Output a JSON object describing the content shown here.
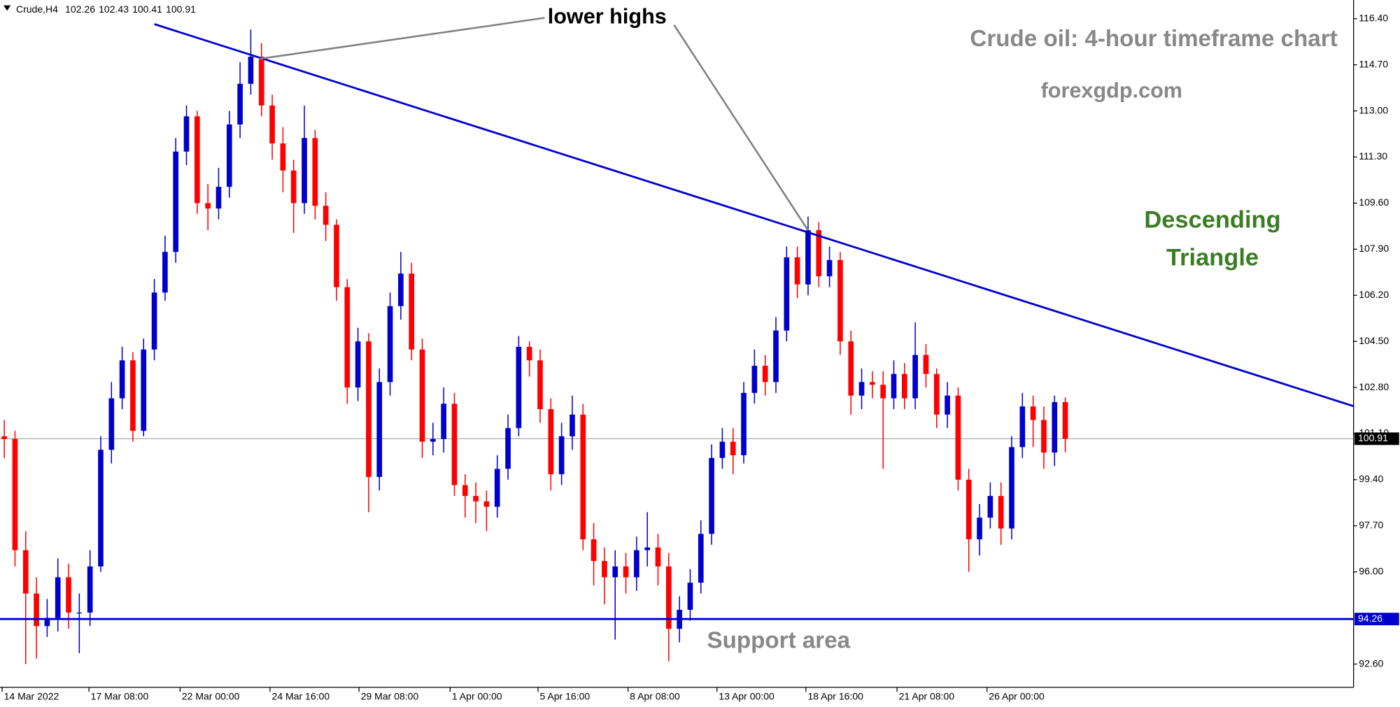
{
  "chart_data": {
    "type": "candlestick",
    "symbol": "Crude,H4",
    "title": "Crude oil: 4-hour timeframe chart",
    "subtitle": "forexgdp.com",
    "annotation": "lower highs",
    "pattern_label": [
      "Descending",
      "Triangle"
    ],
    "support_label": "Support area",
    "up_color": "#0000cd",
    "down_color": "#ff0000",
    "x": [
      0,
      1,
      2,
      3,
      4,
      5,
      6,
      7,
      8,
      9,
      10,
      11,
      12,
      13,
      14,
      15,
      16,
      17,
      18,
      19,
      20,
      21,
      22,
      23,
      24,
      25,
      26,
      27,
      28,
      29,
      30,
      31,
      32,
      33,
      34,
      35,
      36,
      37,
      38,
      39,
      40,
      41,
      42,
      43,
      44,
      45,
      46,
      47,
      48,
      49,
      50,
      51,
      52,
      53,
      54,
      55,
      56,
      57,
      58,
      59,
      60,
      61,
      62,
      63,
      64,
      65,
      66,
      67,
      68,
      69,
      70,
      71,
      72,
      73,
      74,
      75,
      76,
      77,
      78,
      79,
      80,
      81,
      82,
      83,
      84,
      85,
      86,
      87,
      88,
      89,
      90,
      91,
      92,
      93,
      94,
      95,
      96,
      97,
      98,
      99
    ],
    "open": [
      101.0,
      100.9,
      96.8,
      95.2,
      94.0,
      94.3,
      95.8,
      94.5,
      94.5,
      96.2,
      100.5,
      102.4,
      103.8,
      101.2,
      104.2,
      106.3,
      107.8,
      111.5,
      112.8,
      109.6,
      109.4,
      110.2,
      112.5,
      114.0,
      115.0,
      113.2,
      111.8,
      110.8,
      109.6,
      112.0,
      109.5,
      108.8,
      106.5,
      102.8,
      104.5,
      99.5,
      103.0,
      105.8,
      107.0,
      104.2,
      100.8,
      100.9,
      102.2,
      99.2,
      98.8,
      98.6,
      98.4,
      99.8,
      101.3,
      104.3,
      103.8,
      102.0,
      99.6,
      101.0,
      101.8,
      97.2,
      96.4,
      95.8,
      96.2,
      95.8,
      96.8,
      96.9,
      96.2,
      93.9,
      94.6,
      95.6,
      97.4,
      100.2,
      100.8,
      100.3,
      102.6,
      103.6,
      103.0,
      104.9,
      107.6,
      106.6,
      108.6,
      106.9,
      107.5,
      104.5,
      102.5,
      103.0,
      102.9,
      102.4,
      103.3,
      102.4,
      104.0,
      103.3,
      101.8,
      102.5,
      99.4,
      97.2,
      98.0,
      98.8,
      97.6,
      100.6,
      102.1,
      101.6,
      100.4,
      102.26
    ],
    "high": [
      101.6,
      101.2,
      97.5,
      95.8,
      95.0,
      96.5,
      96.3,
      95.2,
      96.8,
      101.0,
      103.0,
      104.3,
      104.1,
      104.6,
      106.8,
      108.4,
      112.0,
      113.2,
      113.0,
      110.3,
      110.9,
      113.0,
      114.8,
      116.0,
      115.5,
      113.6,
      112.4,
      111.2,
      113.2,
      112.3,
      110.0,
      109.0,
      106.8,
      105.0,
      104.8,
      103.5,
      106.3,
      107.8,
      107.4,
      104.6,
      101.5,
      102.8,
      102.6,
      99.6,
      99.3,
      99.0,
      100.3,
      101.8,
      104.7,
      104.5,
      104.2,
      102.4,
      101.5,
      102.5,
      102.2,
      97.8,
      96.9,
      96.8,
      96.7,
      97.3,
      98.2,
      97.4,
      96.7,
      95.1,
      96.1,
      97.9,
      100.7,
      101.3,
      101.3,
      103.0,
      104.2,
      104.0,
      105.4,
      108.0,
      108.0,
      109.1,
      108.9,
      108.0,
      107.8,
      104.9,
      103.5,
      103.4,
      103.4,
      103.8,
      103.7,
      105.2,
      104.4,
      103.5,
      103.0,
      102.8,
      99.8,
      98.5,
      99.3,
      99.3,
      101.0,
      102.6,
      102.5,
      102.1,
      102.5,
      102.43
    ],
    "low": [
      100.2,
      96.2,
      92.6,
      92.8,
      93.6,
      93.8,
      93.9,
      93.0,
      94.0,
      96.0,
      100.0,
      102.0,
      100.8,
      101.0,
      103.8,
      106.0,
      107.4,
      111.0,
      109.2,
      108.6,
      109.0,
      109.8,
      112.0,
      113.6,
      112.8,
      111.2,
      110.0,
      108.5,
      109.2,
      109.0,
      108.2,
      106.0,
      102.2,
      102.3,
      98.2,
      99.0,
      102.5,
      105.3,
      103.8,
      100.2,
      100.3,
      100.4,
      98.8,
      98.0,
      97.8,
      97.5,
      98.0,
      99.4,
      101.0,
      103.2,
      101.5,
      99.0,
      99.2,
      100.5,
      96.8,
      95.5,
      94.8,
      93.5,
      95.2,
      95.3,
      96.2,
      95.5,
      92.7,
      93.4,
      94.2,
      95.2,
      97.0,
      99.8,
      99.6,
      100.0,
      102.2,
      102.5,
      102.6,
      104.5,
      106.1,
      106.2,
      106.5,
      106.5,
      104.0,
      101.8,
      102.0,
      102.4,
      99.8,
      102.0,
      102.0,
      102.0,
      102.8,
      101.3,
      101.3,
      99.0,
      96.0,
      96.6,
      97.6,
      97.0,
      97.2,
      100.2,
      100.6,
      99.8,
      99.9,
      100.41
    ],
    "close": [
      100.9,
      96.8,
      95.2,
      94.0,
      94.3,
      95.8,
      94.5,
      94.5,
      96.2,
      100.5,
      102.4,
      103.8,
      101.2,
      104.2,
      106.3,
      107.8,
      111.5,
      112.8,
      109.6,
      109.4,
      110.2,
      112.5,
      114.0,
      115.0,
      113.2,
      111.8,
      110.8,
      109.6,
      112.0,
      109.5,
      108.8,
      106.5,
      102.8,
      104.5,
      99.5,
      103.0,
      105.8,
      107.0,
      104.2,
      100.8,
      100.9,
      102.2,
      99.2,
      98.8,
      98.6,
      98.4,
      99.8,
      101.3,
      104.3,
      103.8,
      102.0,
      99.6,
      101.0,
      101.8,
      97.2,
      96.4,
      95.8,
      96.2,
      95.8,
      96.8,
      96.9,
      96.2,
      93.9,
      94.6,
      95.6,
      97.4,
      100.2,
      100.8,
      100.3,
      102.6,
      103.6,
      103.0,
      104.9,
      107.6,
      106.6,
      108.6,
      106.9,
      107.5,
      104.5,
      102.5,
      103.0,
      102.9,
      102.4,
      103.3,
      102.4,
      104.0,
      103.3,
      101.8,
      102.5,
      99.4,
      97.2,
      98.0,
      98.8,
      97.6,
      100.6,
      102.1,
      101.6,
      100.4,
      102.26,
      100.91
    ],
    "xlim": [
      -0.4,
      125.9
    ],
    "xticks": [
      {
        "value": -0.2,
        "label": "14 Mar 2022"
      },
      {
        "value": 7.9,
        "label": "17 Mar 08:00"
      },
      {
        "value": 16.4,
        "label": "22 Mar 00:00"
      },
      {
        "value": 24.8,
        "label": "24 Mar 16:00"
      },
      {
        "value": 33.1,
        "label": "29 Mar 08:00"
      },
      {
        "value": 41.6,
        "label": "1 Apr 00:00"
      },
      {
        "value": 49.8,
        "label": "5 Apr 16:00"
      },
      {
        "value": 58.2,
        "label": "8 Apr 08:00"
      },
      {
        "value": 66.5,
        "label": "13 Apr 00:00"
      },
      {
        "value": 74.8,
        "label": "18 Apr 16:00"
      },
      {
        "value": 83.3,
        "label": "21 Apr 08:00"
      },
      {
        "value": 91.7,
        "label": "26 Apr 00:00"
      }
    ],
    "ylim": [
      91.74,
      117.09
    ],
    "yticks": [
      {
        "value": 116.4,
        "label": "116.40"
      },
      {
        "value": 114.7,
        "label": "114.70"
      },
      {
        "value": 113,
        "label": "113.00"
      },
      {
        "value": 111.3,
        "label": "111.30"
      },
      {
        "value": 109.6,
        "label": "109.60"
      },
      {
        "value": 107.9,
        "label": "107.90"
      },
      {
        "value": 106.2,
        "label": "106.20"
      },
      {
        "value": 104.5,
        "label": "104.50"
      },
      {
        "value": 102.8,
        "label": "102.80"
      },
      {
        "value": 101.1,
        "label": "101.10"
      },
      {
        "value": 99.4,
        "label": "99.40"
      },
      {
        "value": 97.7,
        "label": "97.70"
      },
      {
        "value": 96,
        "label": "96.00"
      },
      {
        "value": 92.6,
        "label": "92.60"
      }
    ],
    "trendline": {
      "x": [
        14,
        125.9
      ],
      "y": [
        116.2,
        102.11
      ],
      "color": "#0000cd"
    },
    "support": {
      "value": 94.26,
      "color": "#0000cd"
    }
  }
}
